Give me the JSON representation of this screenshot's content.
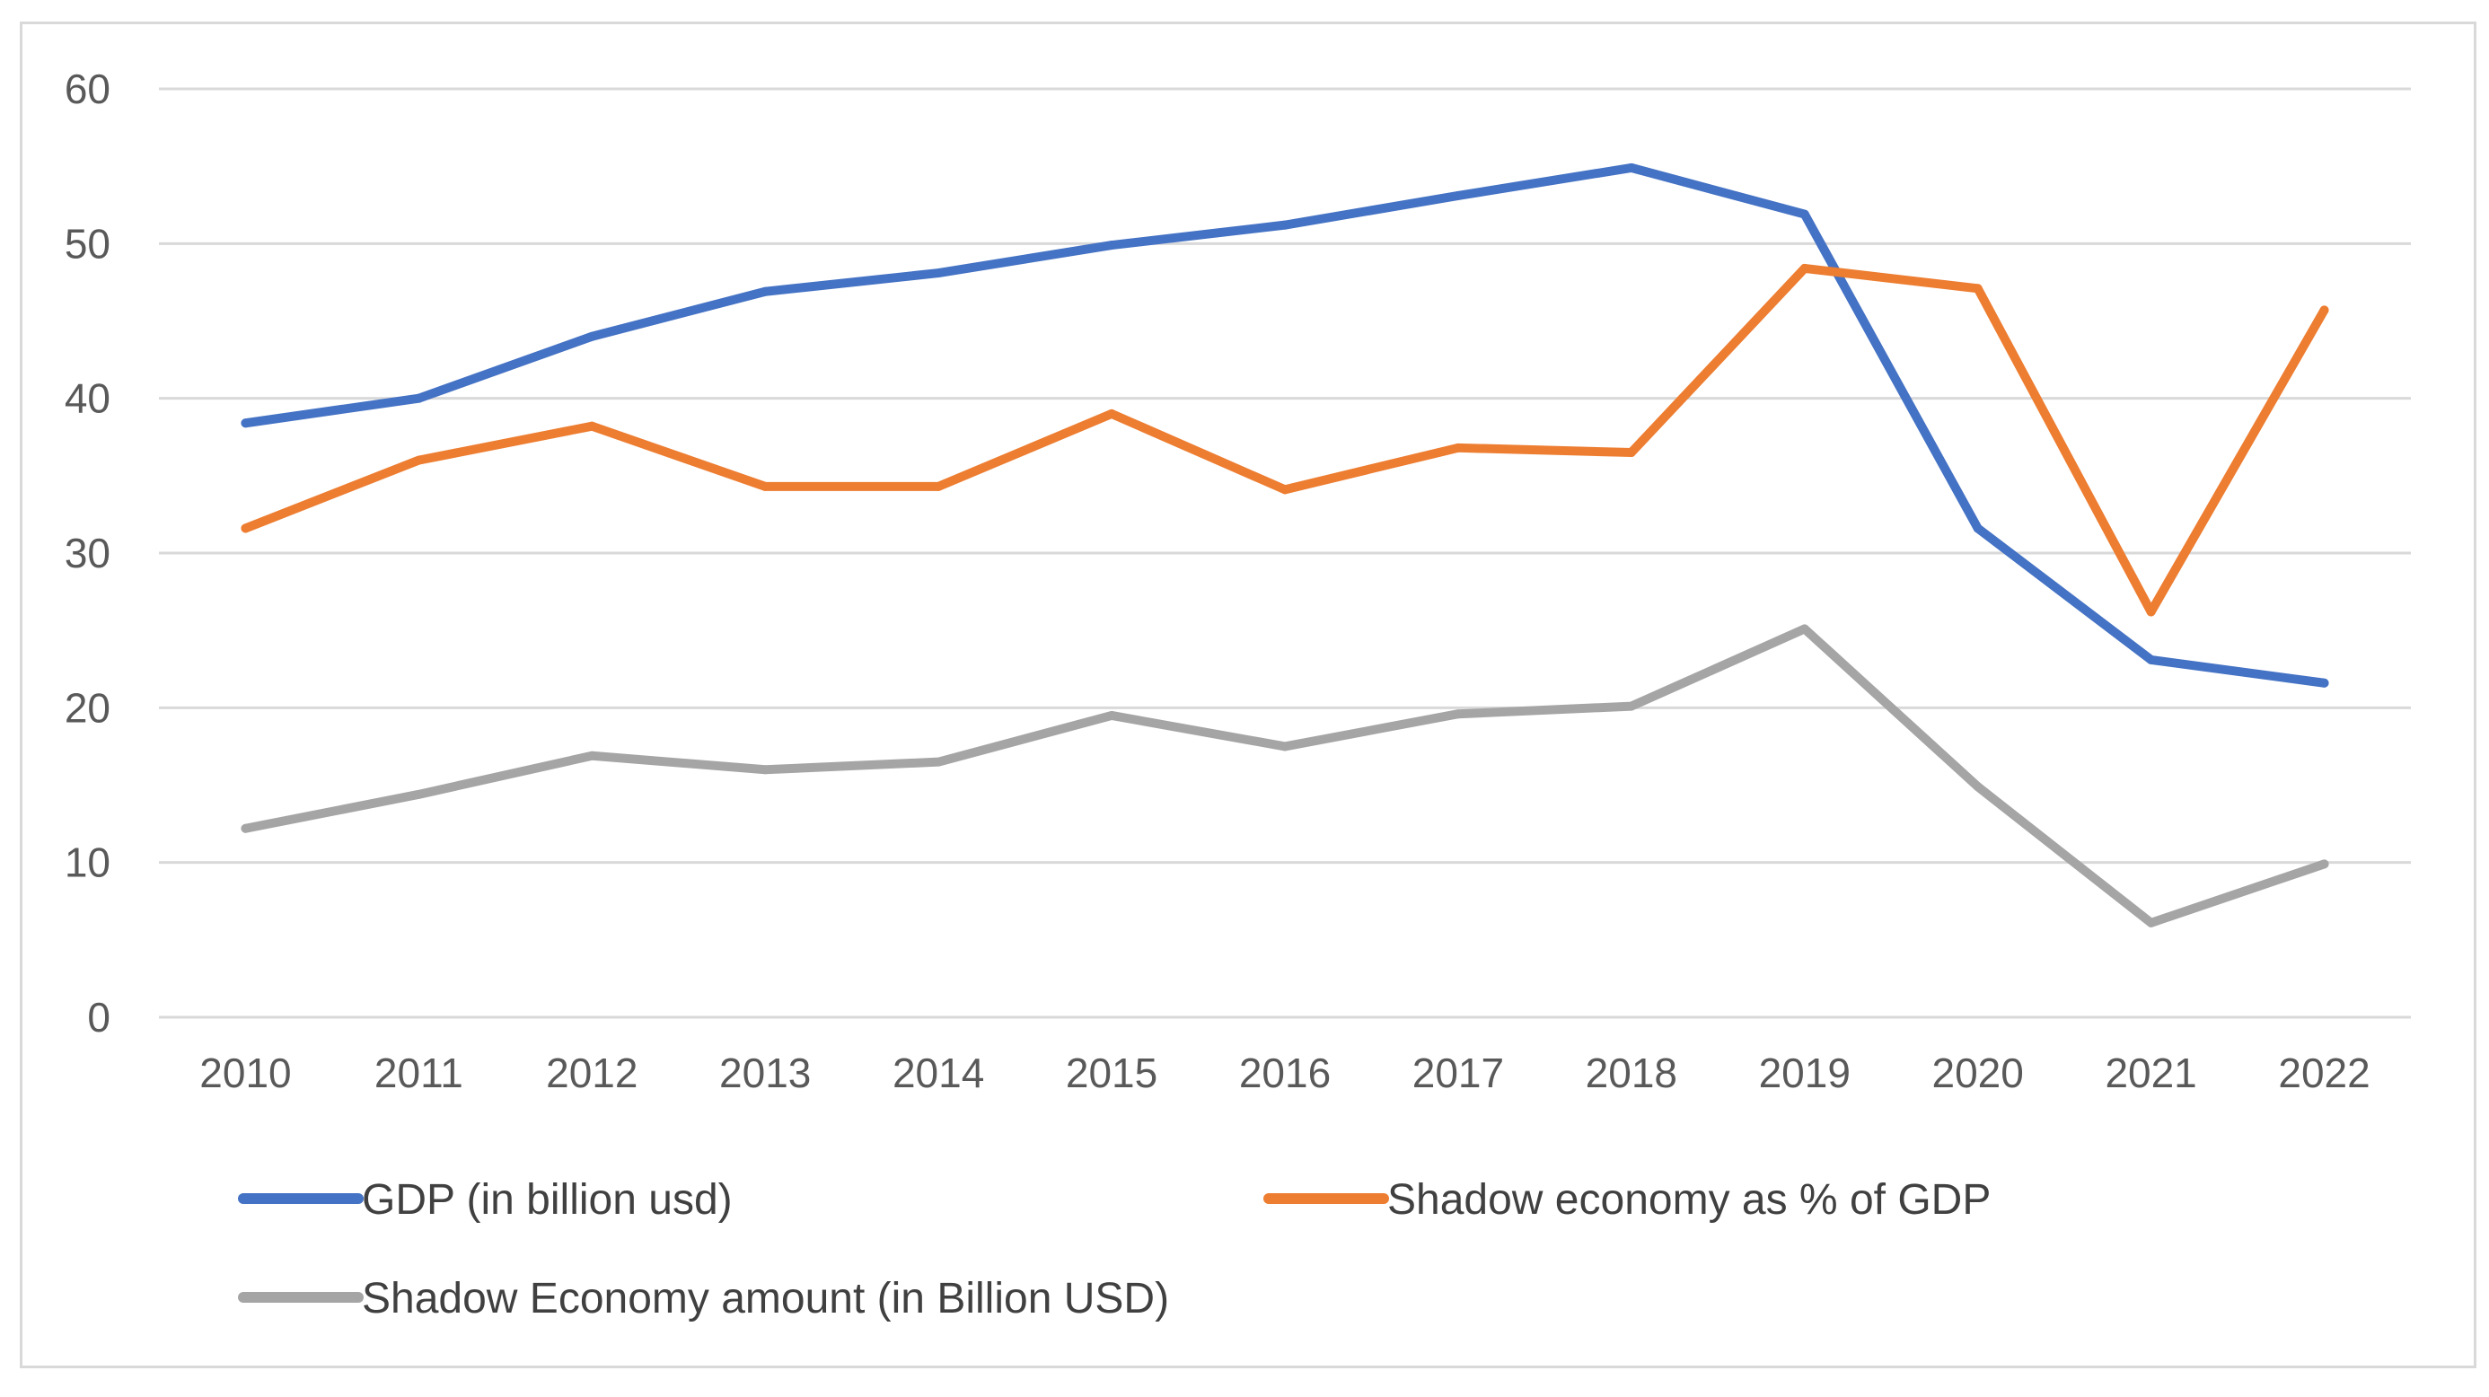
{
  "chart_data": {
    "type": "line",
    "title": "",
    "xlabel": "",
    "ylabel": "",
    "categories": [
      "2010",
      "2011",
      "2012",
      "2013",
      "2014",
      "2015",
      "2016",
      "2017",
      "2018",
      "2019",
      "2020",
      "2021",
      "2022"
    ],
    "ylim": [
      0,
      60
    ],
    "yticks": [
      "0",
      "10",
      "20",
      "30",
      "40",
      "50",
      "60"
    ],
    "grid": true,
    "legend_position": "bottom",
    "series": [
      {
        "name": "GDP (in billion usd)",
        "color": "#4472c4",
        "values": [
          38.4,
          40.0,
          44.0,
          46.9,
          48.1,
          49.9,
          51.2,
          53.1,
          54.9,
          51.9,
          31.6,
          23.1,
          21.6
        ]
      },
      {
        "name": "Shadow economy as % of GDP",
        "color": "#ed7d31",
        "values": [
          31.6,
          36.0,
          38.2,
          34.3,
          34.3,
          39.0,
          34.1,
          36.8,
          36.5,
          48.4,
          47.1,
          26.2,
          45.7
        ]
      },
      {
        "name": "Shadow Economy amount (in Billion USD)",
        "color": "#a5a5a5",
        "values": [
          12.2,
          14.4,
          16.9,
          16.0,
          16.5,
          19.5,
          17.5,
          19.6,
          20.1,
          25.1,
          14.9,
          6.1,
          9.9
        ]
      }
    ]
  }
}
